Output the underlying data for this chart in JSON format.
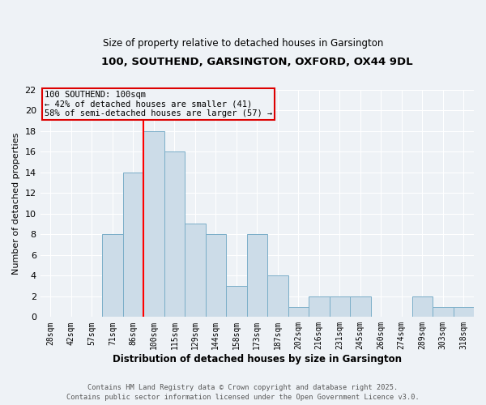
{
  "title_line1": "100, SOUTHEND, GARSINGTON, OXFORD, OX44 9DL",
  "title_line2": "Size of property relative to detached houses in Garsington",
  "xlabel": "Distribution of detached houses by size in Garsington",
  "ylabel": "Number of detached properties",
  "categories": [
    "28sqm",
    "42sqm",
    "57sqm",
    "71sqm",
    "86sqm",
    "100sqm",
    "115sqm",
    "129sqm",
    "144sqm",
    "158sqm",
    "173sqm",
    "187sqm",
    "202sqm",
    "216sqm",
    "231sqm",
    "245sqm",
    "260sqm",
    "274sqm",
    "289sqm",
    "303sqm",
    "318sqm"
  ],
  "values": [
    0,
    0,
    0,
    8,
    14,
    18,
    16,
    9,
    8,
    3,
    8,
    4,
    1,
    2,
    2,
    2,
    0,
    0,
    2,
    1,
    1
  ],
  "bar_color": "#ccdce8",
  "bar_edge_color": "#7aaec8",
  "red_line_index": 5,
  "ylim": [
    0,
    22
  ],
  "yticks": [
    0,
    2,
    4,
    6,
    8,
    10,
    12,
    14,
    16,
    18,
    20,
    22
  ],
  "annotation_title": "100 SOUTHEND: 100sqm",
  "annotation_line2": "← 42% of detached houses are smaller (41)",
  "annotation_line3": "58% of semi-detached houses are larger (57) →",
  "annotation_box_color": "#dd0000",
  "footer_line1": "Contains HM Land Registry data © Crown copyright and database right 2025.",
  "footer_line2": "Contains public sector information licensed under the Open Government Licence v3.0.",
  "bg_color": "#eef2f6",
  "grid_color": "#d8e4f0",
  "white_grid": "#ffffff"
}
